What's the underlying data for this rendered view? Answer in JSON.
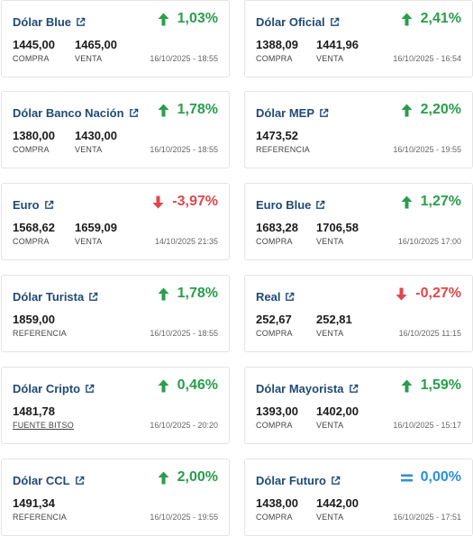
{
  "colors": {
    "title": "#1f4a75",
    "up": "#2a9d4b",
    "down": "#e0474c",
    "equal": "#2f8fd6"
  },
  "cards": [
    {
      "title": "Dólar Blue",
      "direction": "up",
      "change": "1,03%",
      "v1": "1445,00",
      "l1": "COMPRA",
      "v2": "1465,00",
      "l2": "VENTA",
      "timestamp": "16/10/2025 - 18:55"
    },
    {
      "title": "Dólar Oficial",
      "direction": "up",
      "change": "2,41%",
      "v1": "1388,09",
      "l1": "COMPRA",
      "v2": "1441,96",
      "l2": "VENTA",
      "timestamp": "16/10/2025 - 16:54"
    },
    {
      "title": "Dólar Banco Nación",
      "direction": "up",
      "change": "1,78%",
      "v1": "1380,00",
      "l1": "COMPRA",
      "v2": "1430,00",
      "l2": "VENTA",
      "timestamp": "16/10/2025 - 18:55"
    },
    {
      "title": "Dólar MEP",
      "direction": "up",
      "change": "2,20%",
      "v1": "1473,52",
      "l1": "REFERENCIA",
      "timestamp": "16/10/2025 - 19:55"
    },
    {
      "title": "Euro",
      "direction": "down",
      "change": "-3,97%",
      "v1": "1568,62",
      "l1": "COMPRA",
      "v2": "1659,09",
      "l2": "VENTA",
      "timestamp": "14/10/2025 21:35"
    },
    {
      "title": "Euro Blue",
      "direction": "up",
      "change": "1,27%",
      "v1": "1683,28",
      "l1": "COMPRA",
      "v2": "1706,58",
      "l2": "VENTA",
      "timestamp": "16/10/2025 17:00"
    },
    {
      "title": "Dólar Turista",
      "direction": "up",
      "change": "1,78%",
      "v1": "1859,00",
      "l1": "REFERENCIA",
      "timestamp": "16/10/2025 - 18:55"
    },
    {
      "title": "Real",
      "direction": "down",
      "change": "-0,27%",
      "v1": "252,67",
      "l1": "COMPRA",
      "v2": "252,81",
      "l2": "VENTA",
      "timestamp": "16/10/2025 11:15"
    },
    {
      "title": "Dólar Cripto",
      "direction": "up",
      "change": "0,46%",
      "v1": "1481,78",
      "l1": "FUENTE BITSO",
      "l1_link": true,
      "timestamp": "16/10/2025 - 20:20"
    },
    {
      "title": "Dólar Mayorista",
      "direction": "up",
      "change": "1,59%",
      "v1": "1393,00",
      "l1": "COMPRA",
      "v2": "1402,00",
      "l2": "VENTA",
      "timestamp": "16/10/2025 - 15:17"
    },
    {
      "title": "Dólar CCL",
      "direction": "up",
      "change": "2,00%",
      "v1": "1491,34",
      "l1": "REFERENCIA",
      "timestamp": "16/10/2025 - 19:55"
    },
    {
      "title": "Dólar Futuro",
      "direction": "equal",
      "change": "0,00%",
      "v1": "1438,00",
      "l1": "COMPRA",
      "v2": "1442,00",
      "l2": "VENTA",
      "timestamp": "16/10/2025 - 17:51"
    }
  ]
}
